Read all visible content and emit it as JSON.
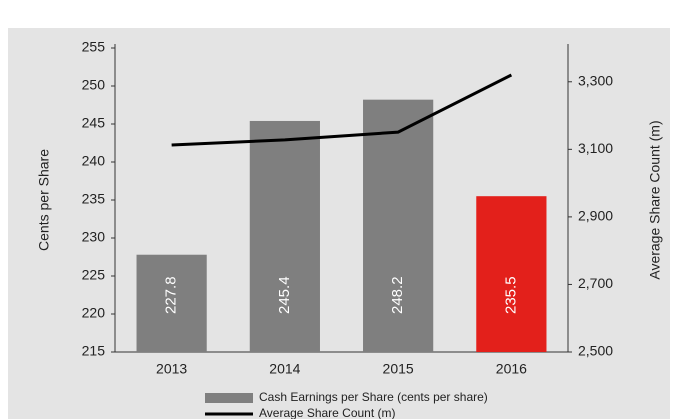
{
  "chart_data": {
    "type": "bar_line",
    "categories": [
      "2013",
      "2014",
      "2015",
      "2016"
    ],
    "series": [
      {
        "name": "Cash Earnings per Share (cents per share)",
        "color": "#7f7f7f",
        "colors": [
          "#7f7f7f",
          "#7f7f7f",
          "#7f7f7f",
          "#e3201b"
        ],
        "values": [
          227.8,
          245.4,
          248.2,
          235.5
        ]
      },
      {
        "name": "Average Share Count (m)",
        "color": "#000000",
        "axis": "y2",
        "values": [
          3113,
          3128,
          3151,
          3320
        ]
      }
    ],
    "ylabel": "Cents per Share",
    "y2label": "Average Share Count (m)",
    "ylim": [
      215,
      255
    ],
    "yticks": [
      215,
      220,
      225,
      230,
      235,
      240,
      245,
      250,
      255
    ],
    "y2lim": [
      2500,
      3400
    ],
    "y2ticks": [
      {
        "value": 2500,
        "label": "2,500"
      },
      {
        "value": 2700,
        "label": "2,700"
      },
      {
        "value": 2900,
        "label": "2,900"
      },
      {
        "value": 3100,
        "label": "3,100"
      },
      {
        "value": 3300,
        "label": "3,300"
      }
    ],
    "grid": false
  }
}
